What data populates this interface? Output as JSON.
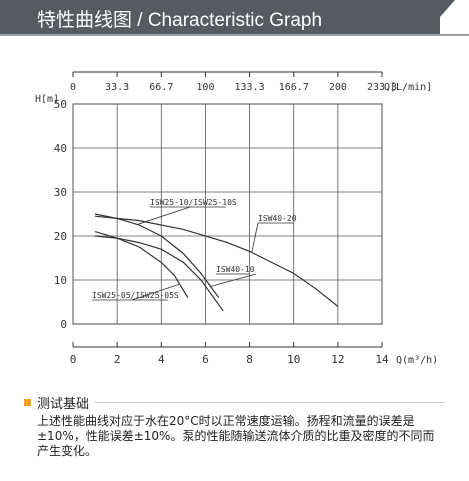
{
  "header": {
    "title": "特性曲线图 / Characteristic Graph"
  },
  "chart_data": {
    "type": "line",
    "x_axis": {
      "label": "Q(m³/h)",
      "min": 0,
      "max": 14,
      "ticks": [
        "0",
        "2",
        "4",
        "6",
        "8",
        "10",
        "12",
        "14"
      ]
    },
    "top_axis": {
      "label": "Q[L/min]",
      "min": 0,
      "max": 233.3,
      "ticks": [
        "0",
        "33.3",
        "66.7",
        "100",
        "133.3",
        "166.7",
        "200",
        "233.3"
      ]
    },
    "y_axis": {
      "label": "H[m]",
      "min": 0,
      "max": 50,
      "ticks": [
        "0",
        "10",
        "20",
        "30",
        "40",
        "50"
      ]
    },
    "grid": true,
    "series": [
      {
        "name": "ISW25-05/ISW25-05S",
        "points": [
          [
            1,
            21
          ],
          [
            2,
            19.5
          ],
          [
            3,
            17.5
          ],
          [
            4,
            14
          ],
          [
            4.6,
            11
          ],
          [
            5.2,
            6
          ]
        ]
      },
      {
        "name": "ISW25-10/ISW25-10S",
        "points": [
          [
            1,
            25
          ],
          [
            2,
            24
          ],
          [
            3,
            22.5
          ],
          [
            4,
            20
          ],
          [
            5,
            16
          ],
          [
            5.8,
            11.5
          ],
          [
            6.6,
            6
          ]
        ]
      },
      {
        "name": "ISW40-10",
        "points": [
          [
            1,
            20
          ],
          [
            2,
            19.5
          ],
          [
            3,
            18.5
          ],
          [
            4,
            17
          ],
          [
            5,
            14
          ],
          [
            5.8,
            10
          ],
          [
            6.8,
            3
          ]
        ]
      },
      {
        "name": "ISW40-20",
        "points": [
          [
            1,
            24.5
          ],
          [
            3,
            23.5
          ],
          [
            5,
            21.5
          ],
          [
            7,
            18.5
          ],
          [
            8,
            16.5
          ],
          [
            9,
            14
          ],
          [
            10,
            11.5
          ],
          [
            11,
            8
          ],
          [
            12,
            4
          ]
        ]
      }
    ]
  },
  "basis": {
    "title": "测试基础",
    "text": "上述性能曲线对应于水在20°C时以正常速度运输。扬程和流量的误差是±10%，性能误差±10%。泵的性能随输送流体介质的比重及密度的不同而产生变化。"
  }
}
